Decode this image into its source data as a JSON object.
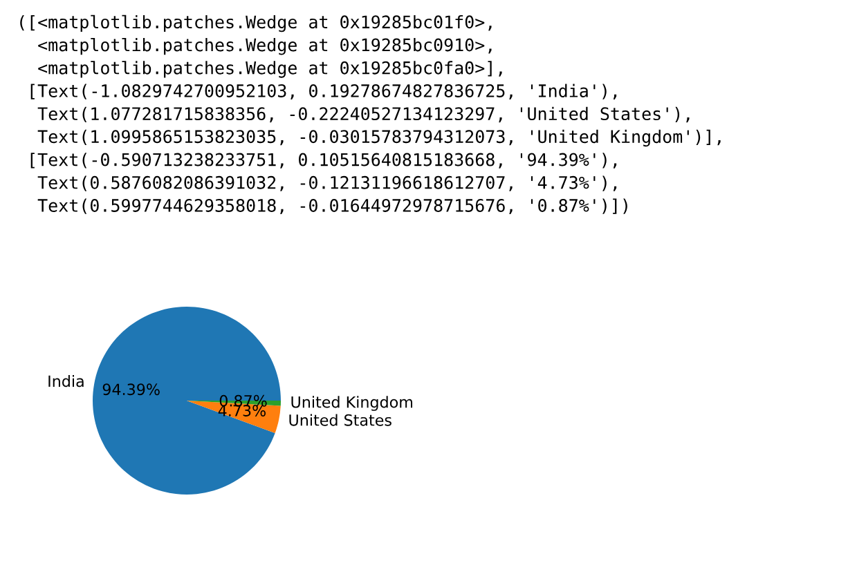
{
  "chart_data": {
    "type": "pie",
    "categories": [
      "India",
      "United States",
      "United Kingdom"
    ],
    "values": [
      94.39,
      4.73,
      0.87
    ],
    "colors": [
      "#1f77b4",
      "#ff7f0e",
      "#2ca02c"
    ],
    "value_labels": [
      "94.39%",
      "4.73%",
      "0.87%"
    ],
    "annotations": [
      "([<matplotlib.patches.Wedge at 0x19285bc01f0>,",
      "  <matplotlib.patches.Wedge at 0x19285bc0910>,",
      "  <matplotlib.patches.Wedge at 0x19285bc0fa0>],",
      " [Text(-1.0829742700952103, 0.19278674827836725, 'India'),",
      "  Text(1.077281715838356, -0.22240527134123297, 'United States'),",
      "  Text(1.0995865153823035, -0.03015783794312073, 'United Kingdom')],",
      " [Text(-0.590713238233751, 0.10515640815183668, '94.39%'),",
      "  Text(0.5876082086391032, -0.12131196618612707, '4.73%'),",
      "  Text(0.5997744629358018, -0.01644972978715676, '0.87%')])"
    ]
  }
}
